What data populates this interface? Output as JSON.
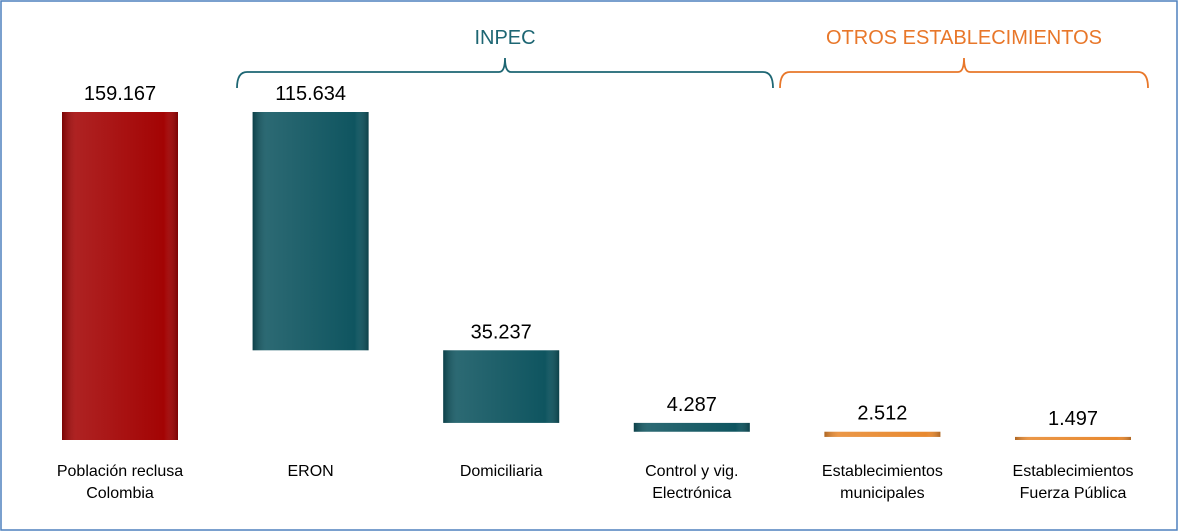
{
  "chart_data": {
    "type": "waterfall",
    "categories": [
      "Población reclusa\nColombia",
      "ERON",
      "Domiciliaria",
      "Control y vig.\nElectrónica",
      "Establecimientos\nmunicipales",
      "Establecimientos\nFuerza Pública"
    ],
    "values": [
      159167,
      115634,
      35237,
      4287,
      2512,
      1497
    ],
    "value_labels": [
      "159.167",
      "115.634",
      "35.237",
      "4.287",
      "2.512",
      "1.497"
    ],
    "colors": [
      "#a30404",
      "#0f5560",
      "#0f5560",
      "#0f5560",
      "#e8892f",
      "#e8892f"
    ],
    "groups": [
      {
        "label": "INPEC",
        "color": "#1d6673"
      },
      {
        "label": "OTROS ESTABLECIMIENTOS",
        "color": "#e8772a"
      }
    ]
  }
}
